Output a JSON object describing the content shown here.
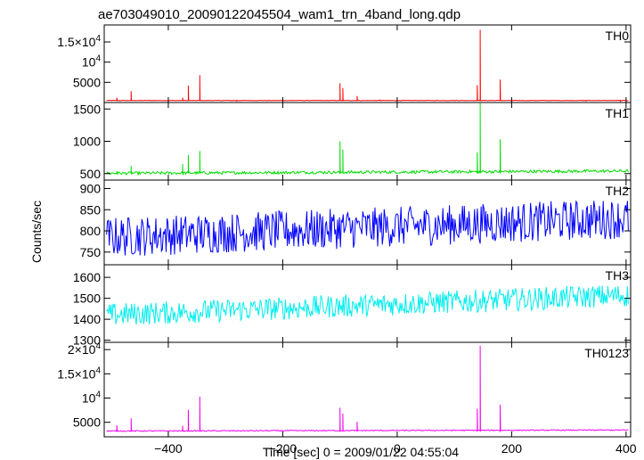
{
  "chart_data": {
    "type": "line",
    "title": "ae703049010_20090122045504_wam1_trn_4band_long.qdp",
    "xlabel": "Time [sec] 0 = 2009/01/22 04:55:04",
    "ylabel": "Counts/sec",
    "x_ticks": [
      -400,
      -200,
      0,
      200,
      400
    ],
    "x_tick_labels": [
      "−400",
      "−200",
      "0",
      "200",
      "400"
    ],
    "xlim": [
      -512,
      408
    ],
    "grid": false,
    "panels": [
      {
        "name": "TH0",
        "color": "#ff0000",
        "ylim": [
          0,
          19200
        ],
        "y_ticks": [
          5000,
          10000,
          15000
        ],
        "y_tick_labels": [
          {
            "mantissa": "5000",
            "exp": ""
          },
          {
            "mantissa": "10",
            "exp": "4"
          },
          {
            "mantissa": "1.5×10",
            "exp": "4"
          }
        ],
        "baseline": 500,
        "noise": 120,
        "trend": 0,
        "spikes": [
          [
            -490,
            1200
          ],
          [
            -465,
            2800
          ],
          [
            -375,
            1200
          ],
          [
            -365,
            4200
          ],
          [
            -345,
            6800
          ],
          [
            -280,
            400
          ],
          [
            -100,
            4800
          ],
          [
            -95,
            3600
          ],
          [
            -70,
            1600
          ],
          [
            -30,
            600
          ],
          [
            140,
            4300
          ],
          [
            145,
            18000
          ],
          [
            180,
            5700
          ],
          [
            330,
            300
          ],
          [
            390,
            350
          ]
        ]
      },
      {
        "name": "TH1",
        "color": "#00dd00",
        "ylim": [
          400,
          1600
        ],
        "y_ticks": [
          500,
          1000,
          1500
        ],
        "y_tick_labels": [
          {
            "mantissa": "500",
            "exp": ""
          },
          {
            "mantissa": "1000",
            "exp": ""
          },
          {
            "mantissa": "1500",
            "exp": ""
          }
        ],
        "baseline": 505,
        "noise": 45,
        "trend": 35,
        "spikes": [
          [
            -490,
            540
          ],
          [
            -465,
            620
          ],
          [
            -375,
            650
          ],
          [
            -365,
            790
          ],
          [
            -345,
            850
          ],
          [
            -100,
            1000
          ],
          [
            -95,
            870
          ],
          [
            140,
            830
          ],
          [
            145,
            1590
          ],
          [
            180,
            1030
          ]
        ]
      },
      {
        "name": "TH2",
        "color": "#0000ff",
        "ylim": [
          720,
          920
        ],
        "y_ticks": [
          750,
          800,
          850,
          900
        ],
        "y_tick_labels": [
          {
            "mantissa": "750",
            "exp": ""
          },
          {
            "mantissa": "800",
            "exp": ""
          },
          {
            "mantissa": "850",
            "exp": ""
          },
          {
            "mantissa": "900",
            "exp": ""
          }
        ],
        "baseline": 785,
        "noise": 95,
        "trend": 45,
        "spikes": []
      },
      {
        "name": "TH3",
        "color": "#00eeee",
        "ylim": [
          1290,
          1660
        ],
        "y_ticks": [
          1300,
          1400,
          1500,
          1600
        ],
        "y_tick_labels": [
          {
            "mantissa": "1300",
            "exp": ""
          },
          {
            "mantissa": "1400",
            "exp": ""
          },
          {
            "mantissa": "1500",
            "exp": ""
          },
          {
            "mantissa": "1600",
            "exp": ""
          }
        ],
        "baseline": 1420,
        "noise": 110,
        "trend": 95,
        "spikes": []
      },
      {
        "name": "TH0123",
        "color": "#ee00ee",
        "ylim": [
          2000,
          21500
        ],
        "y_ticks": [
          5000,
          10000,
          15000,
          20000
        ],
        "y_tick_labels": [
          {
            "mantissa": "5000",
            "exp": ""
          },
          {
            "mantissa": "10",
            "exp": "4"
          },
          {
            "mantissa": "1.5×10",
            "exp": "4"
          },
          {
            "mantissa": "2×10",
            "exp": "4"
          }
        ],
        "baseline": 3200,
        "noise": 200,
        "trend": 200,
        "spikes": [
          [
            -490,
            4400
          ],
          [
            -465,
            5800
          ],
          [
            -375,
            4300
          ],
          [
            -365,
            7600
          ],
          [
            -345,
            10300
          ],
          [
            -100,
            8000
          ],
          [
            -95,
            6800
          ],
          [
            -70,
            5100
          ],
          [
            140,
            7800
          ],
          [
            145,
            20800
          ],
          [
            180,
            8600
          ]
        ]
      }
    ]
  }
}
